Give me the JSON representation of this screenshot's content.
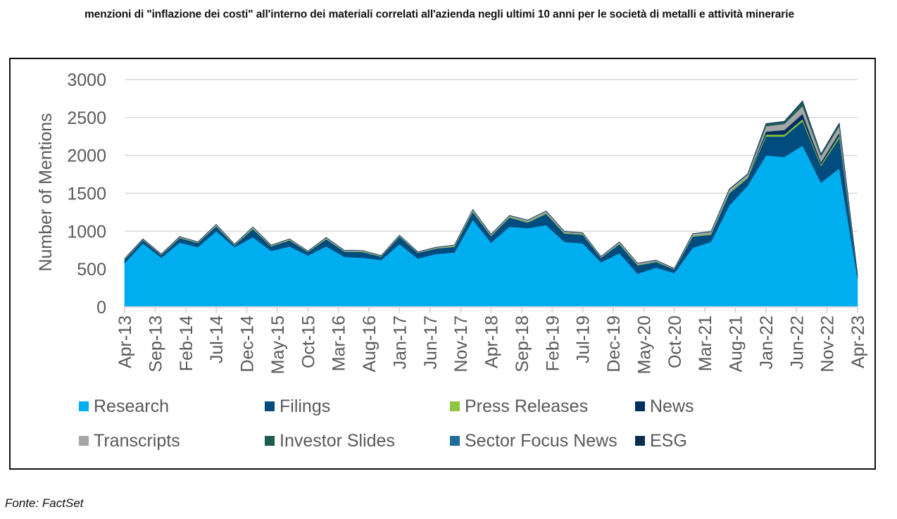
{
  "page": {
    "caption": "menzioni di \"inflazione dei costi\" all'interno dei materiali correlati all'azienda negli ultimi 10 anni per le società di metalli e attività minerarie",
    "source": "Fonte: FactSet"
  },
  "chart_data": {
    "type": "area",
    "stacked": true,
    "title": "",
    "xlabel": "",
    "ylabel": "Number of Mentions",
    "ylim": [
      0,
      3000
    ],
    "yticks": [
      0,
      500,
      1000,
      1500,
      2000,
      2500,
      3000
    ],
    "grid": true,
    "legend_position": "bottom",
    "x": [
      "Apr-13",
      "Jul-13",
      "Oct-13",
      "Jan-14",
      "Apr-14",
      "Jul-14",
      "Oct-14",
      "Jan-15",
      "Apr-15",
      "Jul-15",
      "Oct-15",
      "Jan-16",
      "Apr-16",
      "Jul-16",
      "Oct-16",
      "Jan-17",
      "Apr-17",
      "Jul-17",
      "Oct-17",
      "Jan-18",
      "Apr-18",
      "Jul-18",
      "Oct-18",
      "Jan-19",
      "Apr-19",
      "Jul-19",
      "Oct-19",
      "Jan-20",
      "Apr-20",
      "Jul-20",
      "Oct-20",
      "Jan-21",
      "Apr-21",
      "Jul-21",
      "Oct-21",
      "Jan-22",
      "Apr-22",
      "Jul-22",
      "Oct-22",
      "Jan-23",
      "Apr-23"
    ],
    "xtick_labels": [
      "Apr-13",
      "Sep-13",
      "Feb-14",
      "Jul-14",
      "Dec-14",
      "May-15",
      "Oct-15",
      "Mar-16",
      "Aug-16",
      "Jan-17",
      "Jun-17",
      "Nov-17",
      "Apr-18",
      "Sep-18",
      "Feb-19",
      "Jul-19",
      "Dec-19",
      "May-20",
      "Oct-20",
      "Mar-21",
      "Aug-21",
      "Jan-22",
      "Jun-22",
      "Nov-22",
      "Apr-23"
    ],
    "series": [
      {
        "name": "Research",
        "color": "#00AEEF",
        "values": [
          580,
          840,
          650,
          850,
          790,
          1000,
          790,
          920,
          740,
          800,
          680,
          800,
          660,
          650,
          620,
          830,
          640,
          700,
          720,
          1150,
          850,
          1060,
          1040,
          1080,
          860,
          840,
          590,
          710,
          440,
          520,
          450,
          780,
          860,
          1340,
          1600,
          2000,
          1980,
          2130,
          1640,
          1830,
          380
        ]
      },
      {
        "name": "Filings",
        "color": "#004C7F",
        "values": [
          45,
          45,
          35,
          60,
          55,
          65,
          25,
          110,
          60,
          80,
          45,
          95,
          70,
          75,
          45,
          100,
          75,
          70,
          75,
          105,
          85,
          120,
          75,
          150,
          110,
          115,
          60,
          120,
          110,
          75,
          45,
          150,
          95,
          160,
          100,
          250,
          270,
          320,
          220,
          400,
          35
        ]
      },
      {
        "name": "Press Releases",
        "color": "#8DC63F",
        "values": [
          5,
          5,
          5,
          8,
          5,
          8,
          5,
          8,
          5,
          6,
          4,
          6,
          5,
          8,
          5,
          5,
          4,
          5,
          10,
          10,
          6,
          10,
          10,
          10,
          8,
          6,
          5,
          8,
          6,
          6,
          4,
          10,
          12,
          15,
          15,
          25,
          25,
          30,
          20,
          30,
          3
        ]
      },
      {
        "name": "News",
        "color": "#002D62",
        "values": [
          0,
          0,
          0,
          0,
          0,
          0,
          0,
          0,
          0,
          0,
          0,
          0,
          0,
          0,
          0,
          0,
          0,
          0,
          0,
          0,
          0,
          0,
          0,
          0,
          0,
          0,
          0,
          0,
          0,
          0,
          0,
          0,
          0,
          0,
          0,
          40,
          60,
          70,
          30,
          40,
          2
        ]
      },
      {
        "name": "Transcripts",
        "color": "#A6A6A6",
        "values": [
          8,
          8,
          8,
          10,
          8,
          15,
          8,
          15,
          10,
          12,
          8,
          15,
          12,
          10,
          8,
          12,
          8,
          12,
          12,
          20,
          15,
          15,
          20,
          25,
          18,
          15,
          12,
          18,
          20,
          15,
          8,
          25,
          25,
          35,
          30,
          70,
          80,
          100,
          80,
          90,
          5
        ]
      },
      {
        "name": "Investor Slides",
        "color": "#1B5B50",
        "values": [
          2,
          2,
          2,
          2,
          2,
          2,
          2,
          3,
          2,
          2,
          2,
          3,
          2,
          2,
          2,
          2,
          2,
          2,
          2,
          3,
          3,
          3,
          3,
          3,
          3,
          3,
          2,
          3,
          3,
          3,
          2,
          3,
          5,
          7,
          10,
          25,
          25,
          50,
          20,
          25,
          2
        ]
      },
      {
        "name": "Sector Focus News",
        "color": "#1F6D99",
        "values": [
          0,
          0,
          0,
          0,
          0,
          0,
          0,
          0,
          0,
          0,
          0,
          0,
          0,
          0,
          0,
          0,
          0,
          0,
          0,
          0,
          0,
          0,
          0,
          0,
          0,
          0,
          0,
          0,
          0,
          0,
          0,
          0,
          0,
          0,
          0,
          5,
          5,
          10,
          5,
          5,
          0
        ]
      },
      {
        "name": "ESG",
        "color": "#0B2E4F",
        "values": [
          0,
          0,
          0,
          0,
          0,
          0,
          0,
          0,
          0,
          0,
          0,
          0,
          0,
          0,
          0,
          0,
          0,
          0,
          0,
          0,
          0,
          0,
          0,
          0,
          0,
          0,
          0,
          0,
          0,
          0,
          0,
          0,
          0,
          0,
          0,
          5,
          5,
          10,
          5,
          10,
          0
        ]
      }
    ]
  }
}
